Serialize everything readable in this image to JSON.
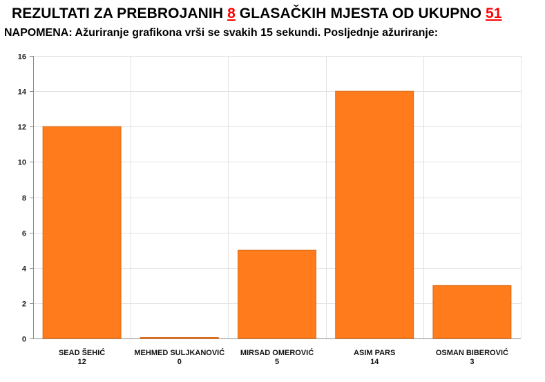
{
  "header": {
    "title_prefix": "REZULTATI ZA PREBROJANIH",
    "counted": "8",
    "title_middle": "GLASAČKIH MJESTA OD UKUPNO",
    "total": "51",
    "note": "NAPOMENA: Ažuriranje grafikona vrši se svakih 15 sekundi. Posljednje ažuriranje:"
  },
  "colors": {
    "bar": "#ff7b1c",
    "bar_edge": "#d96a18",
    "grid": "#e2e2e2",
    "axis": "#8c8c8c",
    "highlight": "#ff0000"
  },
  "chart_data": {
    "type": "bar",
    "categories": [
      "SEAD ŠEHIĆ",
      "MEHMED SULJKANOVIĆ",
      "MIRSAD OMEROVIĆ",
      "ASIM PARS",
      "OSMAN BIBEROVIĆ"
    ],
    "values": [
      12,
      0,
      5,
      14,
      3
    ],
    "value_labels": [
      "12",
      "0",
      "5",
      "14",
      "3"
    ],
    "yticks": [
      "0",
      "2",
      "4",
      "6",
      "8",
      "10",
      "12",
      "14",
      "16"
    ],
    "ylim": [
      0,
      16
    ],
    "grid": true,
    "legend": "none"
  }
}
